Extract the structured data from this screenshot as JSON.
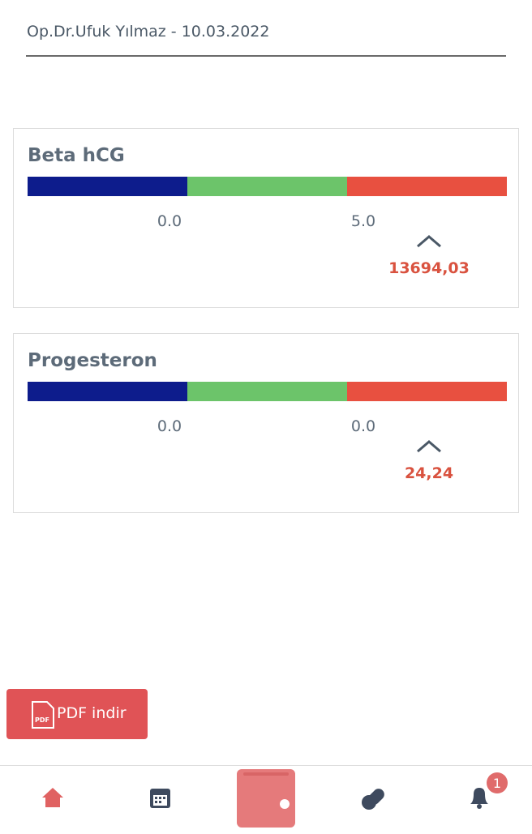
{
  "header": {
    "subtitle": "Op.Dr.Ufuk Yılmaz - 10.03.2022"
  },
  "results": [
    {
      "title": "Beta hCG",
      "low": "0.0",
      "high": "5.0",
      "value": "13694,03"
    },
    {
      "title": "Progesteron",
      "low": "0.0",
      "high": "0.0",
      "value": "24,24"
    }
  ],
  "pdf_button": {
    "icon_label": "PDF",
    "label": "PDF indir"
  },
  "nav": {
    "badge": "1"
  }
}
